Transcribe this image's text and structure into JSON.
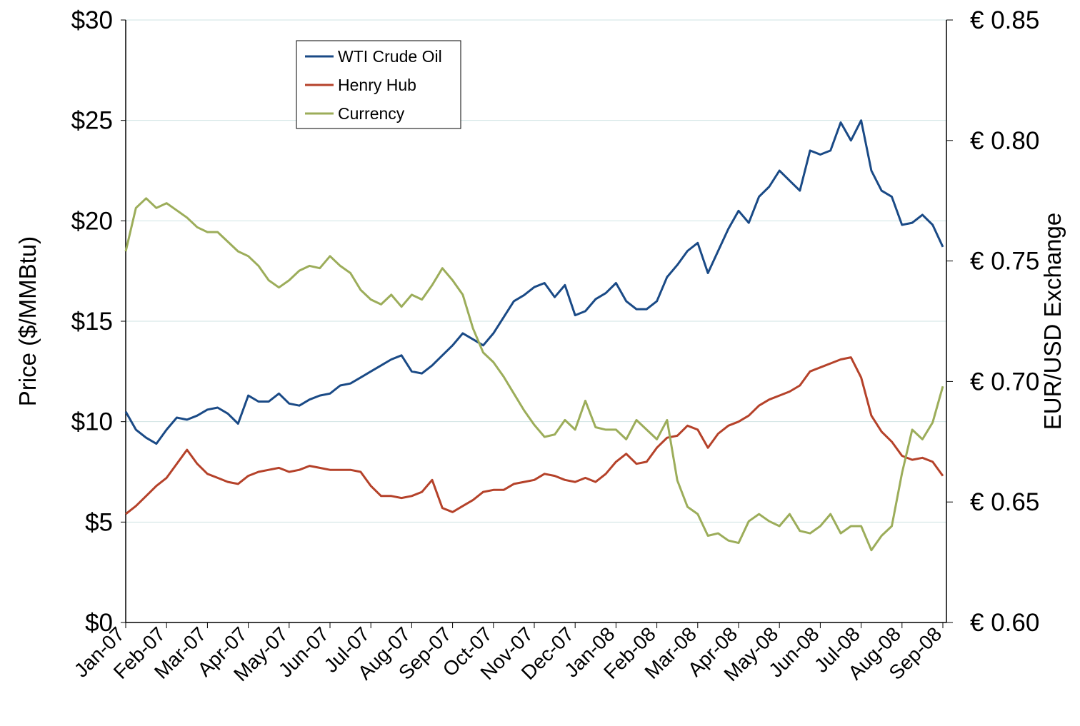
{
  "chart_data": {
    "type": "line",
    "y_label": "Price ($/MMBtu)",
    "y2_label": "EUR/USD Exchange",
    "categories": [
      "Jan-07",
      null,
      null,
      null,
      "Feb-07",
      null,
      null,
      null,
      "Mar-07",
      null,
      null,
      null,
      "Apr-07",
      null,
      null,
      null,
      "May-07",
      null,
      null,
      null,
      "Jun-07",
      null,
      null,
      null,
      "Jul-07",
      null,
      null,
      null,
      "Aug-07",
      null,
      null,
      null,
      "Sep-07",
      null,
      null,
      null,
      "Oct-07",
      null,
      null,
      null,
      "Nov-07",
      null,
      null,
      null,
      "Dec-07",
      null,
      null,
      null,
      "Jan-08",
      null,
      null,
      null,
      "Feb-08",
      null,
      null,
      null,
      "Mar-08",
      null,
      null,
      null,
      "Apr-08",
      null,
      null,
      null,
      "May-08",
      null,
      null,
      null,
      "Jun-08",
      null,
      null,
      null,
      "Jul-08",
      null,
      null,
      null,
      "Aug-08",
      null,
      null,
      null,
      "Sep-08"
    ],
    "series": [
      {
        "name": "WTI Crude Oil",
        "color": "#1a4a86",
        "values": [
          10.5,
          9.6,
          9.2,
          8.9,
          9.6,
          10.2,
          10.1,
          10.3,
          10.6,
          10.7,
          10.4,
          9.9,
          11.3,
          11.0,
          11.0,
          11.4,
          10.9,
          10.8,
          11.1,
          11.3,
          11.4,
          11.8,
          11.9,
          12.2,
          12.5,
          12.8,
          13.1,
          13.3,
          12.5,
          12.4,
          12.8,
          13.3,
          13.8,
          14.4,
          14.1,
          13.8,
          14.4,
          15.2,
          16.0,
          16.3,
          16.7,
          16.9,
          16.2,
          16.8,
          15.3,
          15.5,
          16.1,
          16.4,
          16.9,
          16.0,
          15.6,
          15.6,
          16.0,
          17.2,
          17.8,
          18.5,
          18.9,
          17.4,
          18.5,
          19.6,
          20.5,
          19.9,
          21.2,
          21.7,
          22.5,
          22.0,
          21.5,
          23.5,
          23.3,
          23.5,
          24.9,
          24.0,
          25.0,
          22.5,
          21.5,
          21.2,
          19.8,
          19.9,
          20.3,
          19.8,
          18.7
        ]
      },
      {
        "name": "Henry Hub",
        "color": "#b5422a",
        "values": [
          5.4,
          5.8,
          6.3,
          6.8,
          7.2,
          7.9,
          8.6,
          7.9,
          7.4,
          7.2,
          7.0,
          6.9,
          7.3,
          7.5,
          7.6,
          7.7,
          7.5,
          7.6,
          7.8,
          7.7,
          7.6,
          7.6,
          7.6,
          7.5,
          6.8,
          6.3,
          6.3,
          6.2,
          6.3,
          6.5,
          7.1,
          5.7,
          5.5,
          5.8,
          6.1,
          6.5,
          6.6,
          6.6,
          6.9,
          7.0,
          7.1,
          7.4,
          7.3,
          7.1,
          7.0,
          7.2,
          7.0,
          7.4,
          8.0,
          8.4,
          7.9,
          8.0,
          8.7,
          9.2,
          9.3,
          9.8,
          9.6,
          8.7,
          9.4,
          9.8,
          10.0,
          10.3,
          10.8,
          11.1,
          11.3,
          11.5,
          11.8,
          12.5,
          12.7,
          12.9,
          13.1,
          13.2,
          12.2,
          10.3,
          9.5,
          9.0,
          8.3,
          8.1,
          8.2,
          8.0,
          7.3
        ]
      },
      {
        "name": "Currency",
        "color": "#9cad5a",
        "axis": "y2",
        "values": [
          0.754,
          0.772,
          0.776,
          0.772,
          0.774,
          0.771,
          0.768,
          0.764,
          0.762,
          0.762,
          0.758,
          0.754,
          0.752,
          0.748,
          0.742,
          0.739,
          0.742,
          0.746,
          0.748,
          0.747,
          0.752,
          0.748,
          0.745,
          0.738,
          0.734,
          0.732,
          0.736,
          0.731,
          0.736,
          0.734,
          0.74,
          0.747,
          0.742,
          0.736,
          0.722,
          0.712,
          0.708,
          0.702,
          0.695,
          0.688,
          0.682,
          0.677,
          0.678,
          0.684,
          0.68,
          0.692,
          0.681,
          0.68,
          0.68,
          0.676,
          0.684,
          0.68,
          0.676,
          0.684,
          0.659,
          0.648,
          0.645,
          0.636,
          0.637,
          0.634,
          0.633,
          0.642,
          0.645,
          0.642,
          0.64,
          0.645,
          0.638,
          0.637,
          0.64,
          0.645,
          0.637,
          0.64,
          0.64,
          0.63,
          0.636,
          0.64,
          0.662,
          0.68,
          0.676,
          0.683,
          0.698
        ]
      }
    ],
    "ylim": [
      0,
      30
    ],
    "yticks": [
      {
        "value": 0,
        "label": "$0"
      },
      {
        "value": 5,
        "label": "$5"
      },
      {
        "value": 10,
        "label": "$10"
      },
      {
        "value": 15,
        "label": "$15"
      },
      {
        "value": 20,
        "label": "$20"
      },
      {
        "value": 25,
        "label": "$25"
      },
      {
        "value": 30,
        "label": "$30"
      }
    ],
    "y2lim": [
      0.6,
      0.85
    ],
    "y2ticks": [
      {
        "value": 0.6,
        "label": "€ 0.60"
      },
      {
        "value": 0.65,
        "label": "€ 0.65"
      },
      {
        "value": 0.7,
        "label": "€ 0.70"
      },
      {
        "value": 0.75,
        "label": "€ 0.75"
      },
      {
        "value": 0.8,
        "label": "€ 0.80"
      },
      {
        "value": 0.85,
        "label": "€ 0.85"
      }
    ],
    "grid": true,
    "legend": "top-left"
  }
}
